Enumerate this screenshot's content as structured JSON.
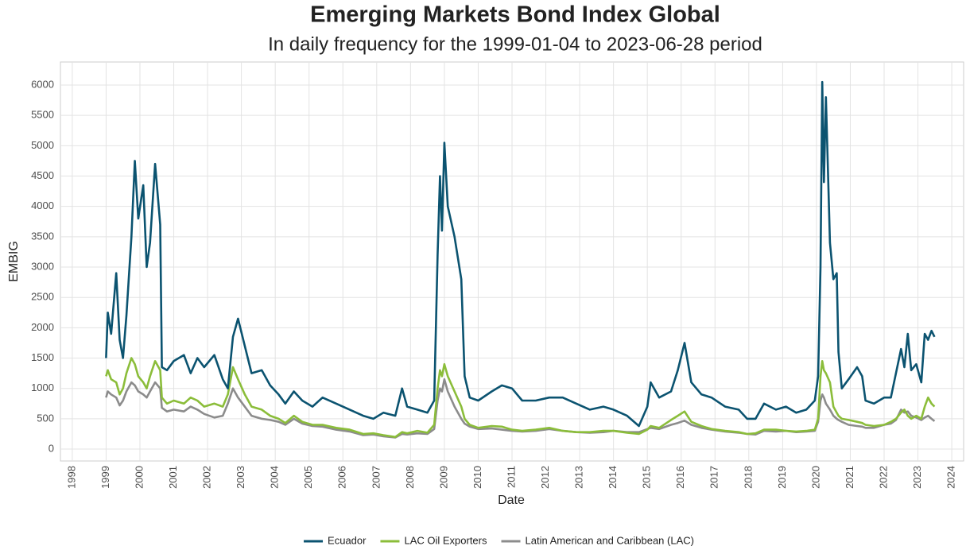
{
  "chart_data": {
    "type": "line",
    "title": "Emerging Markets Bond Index Global",
    "subtitle": "In daily frequency for the 1999-01-04 to 2023-06-28 period",
    "x_label": "Date",
    "y_label": "EMBIG",
    "x": [
      1999.0,
      1999.05,
      1999.15,
      1999.3,
      1999.4,
      1999.5,
      1999.6,
      1999.75,
      1999.85,
      1999.95,
      2000.1,
      2000.2,
      2000.3,
      2000.45,
      2000.6,
      2000.65,
      2000.8,
      2001.0,
      2001.3,
      2001.5,
      2001.7,
      2001.9,
      2002.2,
      2002.45,
      2002.6,
      2002.75,
      2002.9,
      2003.1,
      2003.3,
      2003.6,
      2003.85,
      2004.1,
      2004.3,
      2004.55,
      2004.8,
      2005.1,
      2005.4,
      2005.8,
      2006.2,
      2006.6,
      2006.9,
      2007.2,
      2007.55,
      2007.75,
      2007.9,
      2008.2,
      2008.5,
      2008.7,
      2008.8,
      2008.87,
      2008.93,
      2009.0,
      2009.1,
      2009.3,
      2009.5,
      2009.6,
      2009.75,
      2010.0,
      2010.4,
      2010.7,
      2011.0,
      2011.3,
      2011.7,
      2012.1,
      2012.5,
      2012.9,
      2013.3,
      2013.7,
      2014.0,
      2014.4,
      2014.75,
      2015.0,
      2015.1,
      2015.35,
      2015.7,
      2015.9,
      2016.1,
      2016.3,
      2016.6,
      2016.9,
      2017.3,
      2017.7,
      2017.95,
      2018.2,
      2018.45,
      2018.8,
      2019.1,
      2019.4,
      2019.7,
      2019.95,
      2020.05,
      2020.12,
      2020.17,
      2020.22,
      2020.28,
      2020.4,
      2020.5,
      2020.6,
      2020.65,
      2020.75,
      2020.95,
      2021.2,
      2021.35,
      2021.45,
      2021.7,
      2022.0,
      2022.2,
      2022.35,
      2022.5,
      2022.6,
      2022.7,
      2022.8,
      2022.95,
      2023.1,
      2023.2,
      2023.3,
      2023.4,
      2023.49
    ],
    "series": [
      {
        "name": "Ecuador",
        "color": "#0b5370",
        "values": [
          1500,
          2250,
          1900,
          2900,
          1800,
          1500,
          2200,
          3500,
          4750,
          3800,
          4350,
          3000,
          3400,
          4700,
          3700,
          1350,
          1300,
          1450,
          1550,
          1250,
          1500,
          1350,
          1550,
          1150,
          1000,
          1850,
          2150,
          1700,
          1250,
          1300,
          1050,
          900,
          750,
          950,
          800,
          700,
          850,
          750,
          650,
          550,
          500,
          600,
          550,
          1000,
          700,
          650,
          600,
          800,
          3200,
          4500,
          3600,
          5050,
          4000,
          3500,
          2800,
          1200,
          850,
          800,
          950,
          1050,
          1000,
          800,
          800,
          850,
          850,
          750,
          650,
          700,
          650,
          550,
          380,
          700,
          1100,
          850,
          950,
          1300,
          1750,
          1100,
          900,
          850,
          700,
          650,
          500,
          500,
          750,
          650,
          700,
          600,
          650,
          800,
          1200,
          3000,
          6050,
          4400,
          5800,
          3400,
          2800,
          2900,
          1600,
          1000,
          1150,
          1350,
          1200,
          800,
          750,
          850,
          850,
          1250,
          1650,
          1350,
          1900,
          1300,
          1400,
          1100,
          1900,
          1800,
          1950,
          1850
        ]
      },
      {
        "name": "LAC Oil Exporters",
        "color": "#8bbd3a",
        "values": [
          1200,
          1300,
          1150,
          1100,
          900,
          1000,
          1250,
          1500,
          1400,
          1200,
          1100,
          1000,
          1200,
          1450,
          1300,
          850,
          750,
          800,
          750,
          850,
          800,
          700,
          750,
          700,
          900,
          1350,
          1150,
          900,
          700,
          650,
          550,
          500,
          430,
          550,
          450,
          400,
          400,
          350,
          320,
          250,
          260,
          230,
          200,
          280,
          260,
          300,
          270,
          400,
          1000,
          1300,
          1200,
          1400,
          1200,
          950,
          700,
          500,
          400,
          350,
          380,
          370,
          320,
          300,
          320,
          350,
          300,
          280,
          280,
          300,
          300,
          270,
          250,
          320,
          380,
          350,
          480,
          550,
          620,
          450,
          380,
          330,
          300,
          280,
          250,
          260,
          320,
          320,
          300,
          290,
          300,
          320,
          500,
          1200,
          1450,
          1300,
          1250,
          1100,
          700,
          600,
          550,
          500,
          480,
          450,
          430,
          400,
          380,
          400,
          450,
          500,
          600,
          650,
          550,
          500,
          550,
          500,
          700,
          850,
          750,
          700
        ]
      },
      {
        "name": "Latin American and Caribbean (LAC)",
        "color": "#8c8c8c",
        "values": [
          850,
          950,
          900,
          850,
          720,
          800,
          950,
          1100,
          1050,
          950,
          900,
          850,
          950,
          1100,
          1000,
          680,
          620,
          650,
          620,
          700,
          650,
          580,
          520,
          550,
          750,
          1000,
          850,
          700,
          550,
          500,
          480,
          450,
          400,
          500,
          420,
          380,
          370,
          320,
          290,
          230,
          240,
          210,
          190,
          250,
          240,
          260,
          250,
          330,
          800,
          1000,
          950,
          1150,
          950,
          700,
          500,
          420,
          370,
          330,
          340,
          320,
          300,
          290,
          300,
          330,
          300,
          280,
          270,
          280,
          300,
          280,
          280,
          330,
          350,
          330,
          400,
          430,
          470,
          400,
          350,
          320,
          290,
          270,
          250,
          240,
          300,
          290,
          300,
          280,
          290,
          300,
          450,
          800,
          900,
          850,
          750,
          650,
          550,
          500,
          480,
          450,
          400,
          380,
          370,
          350,
          350,
          400,
          420,
          480,
          650,
          600,
          620,
          550,
          520,
          480,
          520,
          550,
          500,
          460
        ]
      }
    ],
    "xlim": [
      1997.65,
      2024.35
    ],
    "ylim": [
      -196,
      6380
    ],
    "xticks": [
      1998,
      1999,
      2000,
      2001,
      2002,
      2003,
      2004,
      2005,
      2006,
      2007,
      2008,
      2009,
      2010,
      2011,
      2012,
      2013,
      2014,
      2015,
      2016,
      2017,
      2018,
      2019,
      2020,
      2021,
      2022,
      2023,
      2024
    ],
    "yticks": [
      0,
      500,
      1000,
      1500,
      2000,
      2500,
      3000,
      3500,
      4000,
      4500,
      5000,
      5500,
      6000
    ],
    "grid": true,
    "legend": "bottom"
  }
}
